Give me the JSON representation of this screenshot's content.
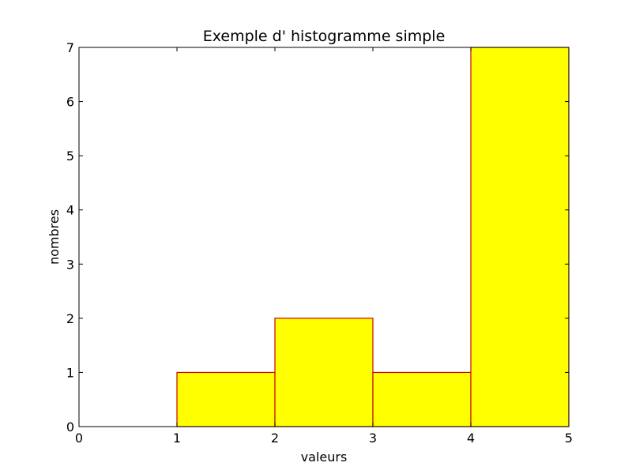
{
  "chart_data": {
    "type": "bar",
    "title": "Exemple d' histogramme simple",
    "xlabel": "valeurs",
    "ylabel": "nombres",
    "bins": [
      {
        "x0": 0,
        "x1": 1,
        "value": 0
      },
      {
        "x0": 1,
        "x1": 2,
        "value": 1
      },
      {
        "x0": 2,
        "x1": 3,
        "value": 2
      },
      {
        "x0": 3,
        "x1": 4,
        "value": 1
      },
      {
        "x0": 4,
        "x1": 5,
        "value": 7
      }
    ],
    "xlim": [
      0,
      5
    ],
    "ylim": [
      0,
      7
    ],
    "xticks": [
      0,
      1,
      2,
      3,
      4,
      5
    ],
    "yticks": [
      0,
      1,
      2,
      3,
      4,
      5,
      6,
      7
    ],
    "bar_fill": "#ffff00",
    "bar_edge": "#cc0000",
    "grid": false
  }
}
